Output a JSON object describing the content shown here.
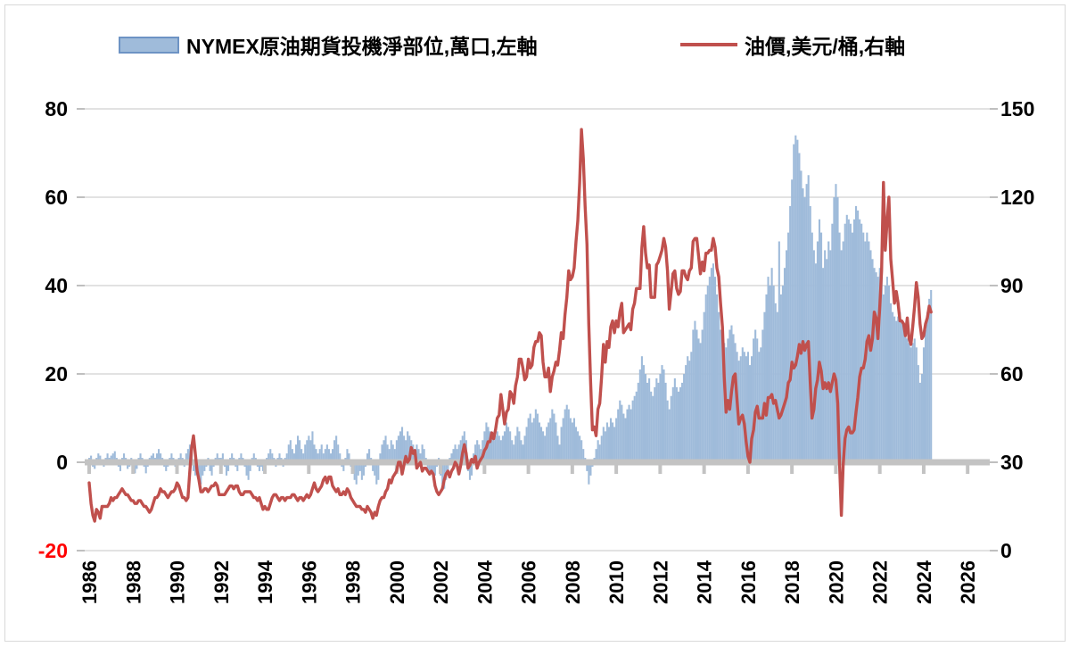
{
  "legend": {
    "bar_label": "NYMEX原油期貨投機淨部位,萬口,左軸",
    "line_label": "油價,美元/桶,右軸"
  },
  "colors": {
    "bar_fill": "#9fbbda",
    "bar_border": "#6d93c4",
    "line": "#c0504d",
    "grid": "#d9d9d9",
    "zero_axis": "#c3c3c3",
    "tick": "#bfbfbf",
    "label": "#000000",
    "negative_label": "#ff0000",
    "frame": "#d9d9d9"
  },
  "chart_data": {
    "type": "bar+line combo, dual axis",
    "x_start_year": 1986,
    "x_step_months": 1,
    "x_axis": {
      "ticks": [
        1986,
        1988,
        1990,
        1992,
        1994,
        1996,
        1998,
        2000,
        2002,
        2004,
        2006,
        2008,
        2010,
        2012,
        2014,
        2016,
        2018,
        2020,
        2022,
        2024,
        2026
      ],
      "min": 1986,
      "max": 2026.5
    },
    "left_axis": {
      "ticks": [
        80,
        60,
        40,
        20,
        0,
        -20
      ],
      "min": -20,
      "max": 80
    },
    "right_axis": {
      "ticks": [
        150,
        120,
        90,
        60,
        30,
        0
      ],
      "min": 0,
      "max": 150
    },
    "series": [
      {
        "name": "NYMEX原油期貨投機淨部位,萬口,左軸",
        "type": "bar",
        "axis": "left",
        "color": "#9fbbda",
        "values": [
          1,
          1.5,
          -1,
          -1.5,
          1,
          2,
          1.5,
          -0.5,
          -1,
          1,
          2,
          1,
          1.5,
          2,
          2.5,
          1,
          -1,
          -2,
          1,
          2,
          1,
          -1.5,
          -1,
          1,
          -1,
          -2.5,
          -1.5,
          1,
          2,
          1,
          -1,
          -2.5,
          -1,
          1,
          1.5,
          2,
          1,
          2,
          3,
          2,
          1,
          -1,
          -2,
          -1,
          1,
          2,
          1,
          -1,
          -1,
          1,
          2,
          1,
          -1,
          2,
          3,
          4,
          2,
          -2,
          -3,
          -2,
          -4,
          -5,
          -3,
          -2,
          -1,
          1,
          -2,
          -3,
          -1,
          1,
          2,
          1,
          1,
          2,
          -1,
          -3,
          -2,
          1,
          2,
          1,
          -1,
          -2,
          1,
          2,
          1,
          -1,
          -3,
          -4,
          -2,
          1,
          2,
          1,
          -1,
          -2,
          -1,
          -2,
          -1,
          1,
          2,
          3,
          2,
          1,
          -1,
          1,
          2,
          1,
          -1,
          1,
          2,
          4,
          5,
          3,
          2,
          4,
          6,
          5,
          3,
          2,
          4,
          5,
          6,
          5,
          7,
          4,
          3,
          2,
          3,
          4,
          2,
          3,
          4,
          3,
          2,
          3,
          5,
          6,
          4,
          2,
          -1,
          -2,
          1,
          3,
          2,
          -1,
          -2,
          -4,
          -5,
          -3,
          -2,
          -4,
          -3,
          -1,
          2,
          3,
          1,
          -2,
          -3,
          -5,
          -4,
          2,
          4,
          5,
          6,
          4,
          3,
          5,
          4,
          3,
          5,
          6,
          7,
          8,
          6,
          5,
          7,
          6,
          5,
          4,
          3,
          4,
          3,
          2,
          4,
          3,
          1,
          -2,
          -3,
          -2,
          -4,
          -3,
          -1,
          1,
          -3,
          -5,
          -6,
          -4,
          -2,
          1,
          2,
          3,
          4,
          3,
          4,
          5,
          6,
          7,
          5,
          -2,
          -4,
          -3,
          2,
          4,
          5,
          4,
          3,
          5,
          7,
          9,
          8,
          7,
          6,
          5,
          6,
          7,
          6,
          5,
          6,
          7,
          9,
          8,
          7,
          5,
          4,
          6,
          8,
          7,
          5,
          4,
          6,
          8,
          10,
          11,
          9,
          10,
          12,
          11,
          9,
          8,
          7,
          6,
          8,
          9,
          10,
          12,
          11,
          9,
          6,
          4,
          8,
          10,
          12,
          13,
          12,
          10,
          9,
          10,
          8,
          7,
          6,
          5,
          3,
          1,
          -2,
          -5,
          -3,
          -1,
          1,
          3,
          5,
          4,
          6,
          8,
          7,
          9,
          8,
          10,
          9,
          8,
          10,
          12,
          14,
          13,
          11,
          10,
          12,
          13,
          12,
          14,
          15,
          16,
          18,
          21,
          24,
          22,
          20,
          18,
          19,
          16,
          15,
          17,
          19,
          18,
          20,
          22,
          21,
          18,
          14,
          12,
          15,
          17,
          19,
          17,
          16,
          17,
          18,
          20,
          22,
          24,
          23,
          25,
          30,
          32,
          30,
          28,
          27,
          30,
          34,
          38,
          40,
          42,
          44,
          45,
          42,
          38,
          34,
          30,
          28,
          27,
          26,
          28,
          30,
          31,
          29,
          27,
          25,
          23,
          24,
          26,
          25,
          24,
          25,
          22,
          24,
          28,
          30,
          28,
          25,
          26,
          30,
          34,
          38,
          42,
          40,
          44,
          40,
          36,
          34,
          50,
          38,
          40,
          44,
          48,
          52,
          58,
          64,
          72,
          74,
          73,
          70,
          66,
          62,
          60,
          63,
          65,
          58,
          52,
          48,
          45,
          50,
          55,
          52,
          44,
          48,
          46,
          50,
          48,
          54,
          60,
          63,
          60,
          52,
          48,
          50,
          54,
          56,
          55,
          54,
          52,
          55,
          58,
          57,
          55,
          54,
          52,
          50,
          52,
          50,
          48,
          46,
          44,
          43,
          42,
          44,
          42,
          38,
          40,
          42,
          40,
          36,
          34,
          33,
          32,
          33,
          34,
          32,
          31,
          30,
          28,
          27,
          26,
          27,
          28,
          26,
          22,
          18,
          20,
          26,
          30,
          34,
          37,
          39
        ]
      },
      {
        "name": "油價,美元/桶,右軸",
        "type": "line",
        "axis": "right",
        "color": "#c0504d",
        "values": [
          23,
          16,
          12,
          10,
          14,
          13,
          11,
          15,
          15,
          15,
          15,
          16,
          18,
          17,
          18,
          18,
          19,
          20,
          21,
          20,
          19,
          19,
          18,
          17,
          17,
          16,
          16,
          17,
          17,
          16,
          15,
          15,
          14,
          13,
          14,
          16,
          18,
          18,
          19,
          21,
          20,
          20,
          19,
          18,
          19,
          20,
          20,
          21,
          23,
          22,
          20,
          18,
          18,
          17,
          18,
          27,
          35,
          39,
          33,
          27,
          24,
          20,
          20,
          21,
          21,
          20,
          21,
          22,
          22,
          23,
          22,
          19,
          19,
          19,
          19,
          20,
          21,
          22,
          22,
          21,
          22,
          22,
          20,
          19,
          19,
          20,
          20,
          20,
          20,
          19,
          18,
          18,
          17,
          18,
          16,
          14,
          15,
          14,
          14,
          16,
          18,
          19,
          19,
          18,
          17,
          18,
          18,
          17,
          18,
          18,
          18,
          19,
          19,
          18,
          17,
          18,
          18,
          17,
          18,
          19,
          18,
          19,
          21,
          23,
          21,
          20,
          21,
          22,
          24,
          25,
          23,
          25,
          25,
          22,
          21,
          20,
          21,
          19,
          19,
          20,
          19,
          21,
          20,
          18,
          17,
          16,
          15,
          15,
          15,
          14,
          14,
          13,
          15,
          14,
          13,
          11,
          13,
          12,
          15,
          17,
          18,
          18,
          20,
          21,
          24,
          23,
          25,
          26,
          27,
          30,
          30,
          26,
          29,
          32,
          30,
          31,
          35,
          33,
          34,
          28,
          29,
          30,
          27,
          28,
          28,
          27,
          26,
          27,
          26,
          22,
          20,
          19,
          20,
          21,
          24,
          26,
          27,
          25,
          27,
          28,
          30,
          29,
          26,
          29,
          33,
          36,
          33,
          28,
          29,
          31,
          30,
          32,
          28,
          30,
          31,
          32,
          34,
          35,
          37,
          37,
          40,
          38,
          41,
          45,
          46,
          53,
          48,
          43,
          47,
          48,
          54,
          53,
          50,
          56,
          59,
          65,
          65,
          62,
          58,
          59,
          65,
          62,
          63,
          69,
          71,
          71,
          74,
          73,
          64,
          59,
          59,
          62,
          54,
          59,
          61,
          64,
          63,
          68,
          74,
          72,
          80,
          86,
          95,
          92,
          93,
          96,
          105,
          112,
          125,
          143,
          133,
          117,
          104,
          77,
          57,
          41,
          42,
          39,
          48,
          50,
          59,
          70,
          64,
          71,
          69,
          76,
          78,
          74,
          78,
          76,
          81,
          84,
          74,
          75,
          76,
          77,
          75,
          82,
          84,
          89,
          89,
          89,
          103,
          110,
          101,
          96,
          97,
          86,
          86,
          86,
          97,
          98,
          100,
          102,
          106,
          103,
          95,
          82,
          88,
          94,
          95,
          89,
          87,
          88,
          95,
          95,
          93,
          92,
          95,
          96,
          105,
          106,
          106,
          100,
          94,
          98,
          95,
          101,
          101,
          102,
          102,
          106,
          103,
          96,
          93,
          84,
          76,
          59,
          47,
          51,
          48,
          54,
          59,
          60,
          51,
          43,
          45,
          46,
          43,
          37,
          32,
          30,
          38,
          41,
          47,
          49,
          45,
          45,
          45,
          50,
          46,
          52,
          52,
          53,
          50,
          51,
          48,
          45,
          46,
          48,
          50,
          52,
          57,
          58,
          64,
          62,
          63,
          66,
          70,
          67,
          71,
          68,
          70,
          71,
          57,
          45,
          48,
          55,
          58,
          64,
          61,
          55,
          57,
          55,
          57,
          54,
          57,
          60,
          58,
          50,
          30,
          12,
          29,
          38,
          41,
          42,
          40,
          40,
          41,
          47,
          52,
          59,
          62,
          62,
          65,
          71,
          73,
          68,
          72,
          81,
          79,
          72,
          83,
          95,
          125,
          102,
          112,
          120,
          99,
          92,
          84,
          88,
          84,
          78,
          78,
          77,
          73,
          79,
          72,
          70,
          76,
          83,
          91,
          86,
          77,
          72,
          73,
          77,
          79,
          83,
          81
        ]
      }
    ]
  }
}
